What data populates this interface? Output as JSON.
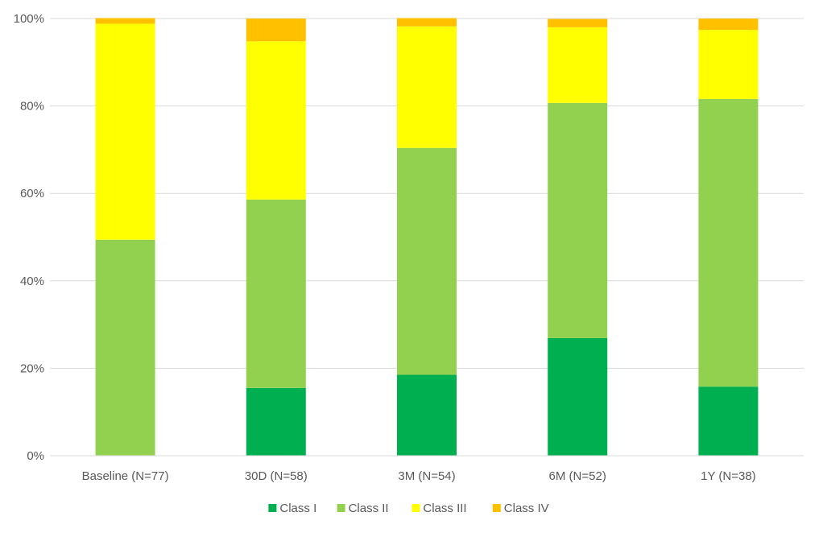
{
  "chart_data": {
    "type": "bar",
    "stacked": true,
    "percent": true,
    "title": "",
    "xlabel": "",
    "ylabel": "",
    "ylim": [
      0,
      100
    ],
    "yticks": [
      "0%",
      "20%",
      "40%",
      "60%",
      "80%",
      "100%"
    ],
    "ytick_values": [
      0,
      20,
      40,
      60,
      80,
      100
    ],
    "grid": true,
    "legend_position": "bottom",
    "categories": [
      "Baseline (N=77)",
      "30D (N=58)",
      "3M (N=54)",
      "6M (N=52)",
      "1Y (N=38)"
    ],
    "series": [
      {
        "name": "Class I",
        "color": "#00b050",
        "values": [
          0,
          15.5,
          18.5,
          26.9,
          15.8
        ]
      },
      {
        "name": "Class II",
        "color": "#92d050",
        "values": [
          49.4,
          43.1,
          51.9,
          53.8,
          65.8
        ]
      },
      {
        "name": "Class III",
        "color": "#ffff00",
        "values": [
          49.4,
          36.2,
          27.8,
          17.3,
          15.8
        ]
      },
      {
        "name": "Class IV",
        "color": "#ffc000",
        "values": [
          1.3,
          5.2,
          1.9,
          1.9,
          2.6
        ]
      }
    ]
  }
}
